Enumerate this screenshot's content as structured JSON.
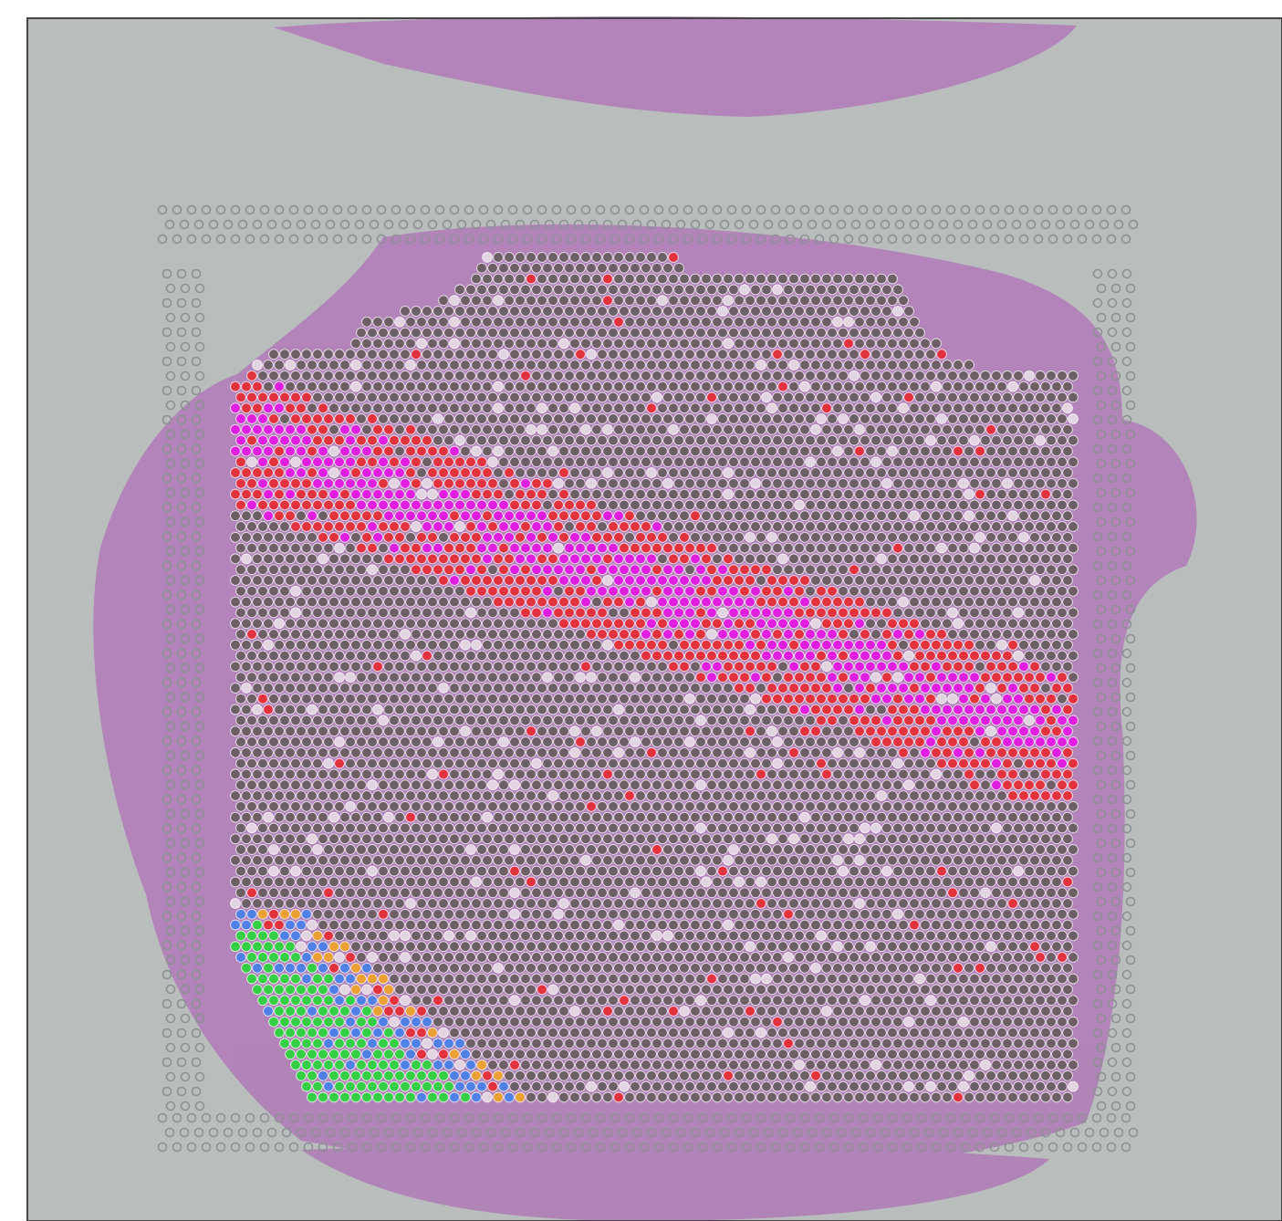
{
  "spots": {
    "background_color": "#6e5f66",
    "stroke_color": "#ffffff",
    "cluster_colors": {
      "light": "#e2d4e0",
      "red": "#e2323e",
      "magenta": "#e01ee0",
      "green": "#35cf45",
      "blue": "#4f80e6",
      "orange": "#eaa032"
    }
  },
  "slide": {
    "background_color": "#b9bebc",
    "tissue_color": "#b07ab8",
    "fiducial_color": "#8d9094"
  }
}
